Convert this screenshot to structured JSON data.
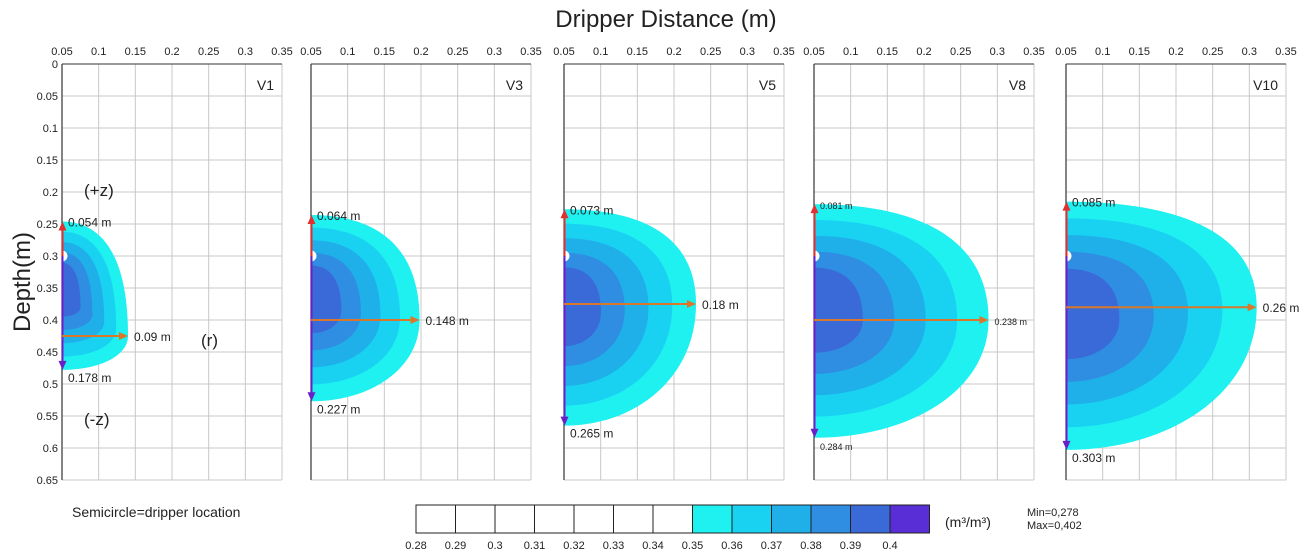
{
  "title": "Dripper Distance (m)",
  "y_label": "Depth(m)",
  "note": "Semicircle=dripper location",
  "minmax": [
    "Min=0,278",
    "Max=0,402"
  ],
  "unit": "(m³/m³)",
  "z_up_label": "(+z)",
  "z_down_label": "(-z)",
  "r_label": "(r)",
  "colors": {
    "grid": "#c8c8c8",
    "axis": "#333333",
    "arrow_up": "#e03030",
    "arrow_down": "#6a20c8",
    "arrow_r": "#d9772b",
    "levels": [
      "#ffffff",
      "#ffffff",
      "#ffffff",
      "#ffffff",
      "#ffffff",
      "#ffffff",
      "#ffffff",
      "#1ff0f0",
      "#19d2f2",
      "#1fb0ea",
      "#2f8ee2",
      "#3a6ad8",
      "#5a2ed6"
    ]
  },
  "colorbar": {
    "ticks": [
      "0.28",
      "0.29",
      "0.3",
      "0.31",
      "0.32",
      "0.33",
      "0.34",
      "0.35",
      "0.36",
      "0.37",
      "0.38",
      "0.39",
      "0.4"
    ]
  },
  "chart_data": [
    {
      "type": "contour",
      "label": "V1",
      "xlim": [
        0.05,
        0.35
      ],
      "ylim": [
        0,
        0.65
      ],
      "x_ticks": [
        "0.05",
        "0.1",
        "0.15",
        "0.2",
        "0.25",
        "0.3",
        "0.35"
      ],
      "y_ticks": [
        "0",
        "0.05",
        "0.1",
        "0.15",
        "0.2",
        "0.25",
        "0.3",
        "0.35",
        "0.4",
        "0.45",
        "0.5",
        "0.55",
        "0.6",
        "0.65"
      ],
      "dripper_depth": 0.3,
      "up": {
        "value": 0.054,
        "label": "0.054 m"
      },
      "down": {
        "value": 0.178,
        "label": "0.178 m"
      },
      "radial": {
        "value": 0.09,
        "depth": 0.425,
        "label": "0.09 m"
      }
    },
    {
      "type": "contour",
      "label": "V3",
      "xlim": [
        0.05,
        0.35
      ],
      "ylim": [
        0,
        0.65
      ],
      "x_ticks": [
        "0.05",
        "0.1",
        "0.15",
        "0.2",
        "0.25",
        "0.3",
        "0.35"
      ],
      "dripper_depth": 0.3,
      "up": {
        "value": 0.064,
        "label": "0.064 m"
      },
      "down": {
        "value": 0.227,
        "label": "0.227 m"
      },
      "radial": {
        "value": 0.148,
        "depth": 0.4,
        "label": "0.148 m"
      }
    },
    {
      "type": "contour",
      "label": "V5",
      "xlim": [
        0.05,
        0.35
      ],
      "ylim": [
        0,
        0.65
      ],
      "x_ticks": [
        "0.05",
        "0.1",
        "0.15",
        "0.2",
        "0.25",
        "0.3",
        "0.35"
      ],
      "dripper_depth": 0.3,
      "up": {
        "value": 0.073,
        "label": "0.073 m"
      },
      "down": {
        "value": 0.265,
        "label": "0.265 m"
      },
      "radial": {
        "value": 0.18,
        "depth": 0.375,
        "label": "0.18 m"
      }
    },
    {
      "type": "contour",
      "label": "V8",
      "xlim": [
        0.05,
        0.35
      ],
      "ylim": [
        0,
        0.65
      ],
      "x_ticks": [
        "0.05",
        "0.1",
        "0.15",
        "0.2",
        "0.25",
        "0.3",
        "0.35"
      ],
      "dripper_depth": 0.3,
      "up": {
        "value": 0.081,
        "label": "0.081 m"
      },
      "down": {
        "value": 0.284,
        "label": "0.284 m"
      },
      "radial": {
        "value": 0.238,
        "depth": 0.4,
        "label": "0.238 m"
      }
    },
    {
      "type": "contour",
      "label": "V10",
      "xlim": [
        0.05,
        0.35
      ],
      "ylim": [
        0,
        0.65
      ],
      "x_ticks": [
        "0.05",
        "0.1",
        "0.15",
        "0.2",
        "0.25",
        "0.3",
        "0.35"
      ],
      "dripper_depth": 0.3,
      "up": {
        "value": 0.085,
        "label": "0.085 m"
      },
      "down": {
        "value": 0.303,
        "label": "0.303 m"
      },
      "radial": {
        "value": 0.26,
        "depth": 0.38,
        "label": "0.26 m"
      }
    }
  ]
}
